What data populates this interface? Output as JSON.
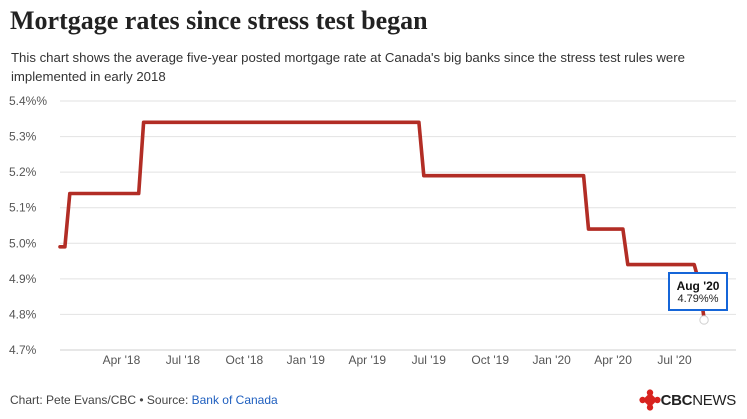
{
  "header": {
    "title": "Mortgage rates since stress test began",
    "subtitle": "This chart shows the average five-year posted mortgage rate at Canada's big banks since the stress test rules were implemented in early 2018"
  },
  "footer": {
    "credit": "Chart: Pete Evans/CBC • Source: ",
    "source_link": "Bank of Canada",
    "logo": "CBC",
    "logo_light": "NEWS"
  },
  "tooltip": {
    "date": "Aug '20",
    "value": "4.79%%"
  },
  "colors": {
    "line": "#b22d25",
    "grid": "#e2e2e2",
    "tooltip_border": "#1565d8"
  },
  "chart_data": {
    "type": "line",
    "title": "Mortgage rates since stress test began",
    "xlabel": "",
    "ylabel": "",
    "ylim": [
      4.7,
      5.4
    ],
    "y_ticks": [
      4.7,
      4.8,
      4.9,
      5.0,
      5.1,
      5.2,
      5.3,
      5.4
    ],
    "y_tick_labels": [
      "4.7%",
      "4.8%",
      "4.9%",
      "5.0%",
      "5.1%",
      "5.2%",
      "5.3%",
      "5.4%%"
    ],
    "x_range": [
      2018.0,
      2020.75
    ],
    "x_ticks": [
      2018.25,
      2018.5,
      2018.75,
      2019.0,
      2019.25,
      2019.5,
      2019.75,
      2020.0,
      2020.25,
      2020.5
    ],
    "x_tick_labels": [
      "Apr '18",
      "Jul '18",
      "Oct '18",
      "Jan '19",
      "Apr '19",
      "Jul '19",
      "Oct '19",
      "Jan '20",
      "Apr '20",
      "Jul '20"
    ],
    "series": [
      {
        "name": "Five-year posted mortgage rate",
        "x": [
          2018.0,
          2018.02,
          2018.04,
          2018.32,
          2018.34,
          2019.46,
          2019.48,
          2020.13,
          2020.15,
          2020.29,
          2020.31,
          2020.58,
          2020.6,
          2020.62
        ],
        "y": [
          4.99,
          4.99,
          5.14,
          5.14,
          5.34,
          5.34,
          5.19,
          5.19,
          5.04,
          5.04,
          4.94,
          4.94,
          4.89,
          4.79
        ]
      }
    ],
    "highlight": {
      "label": "Aug '20",
      "value": 4.79
    }
  }
}
